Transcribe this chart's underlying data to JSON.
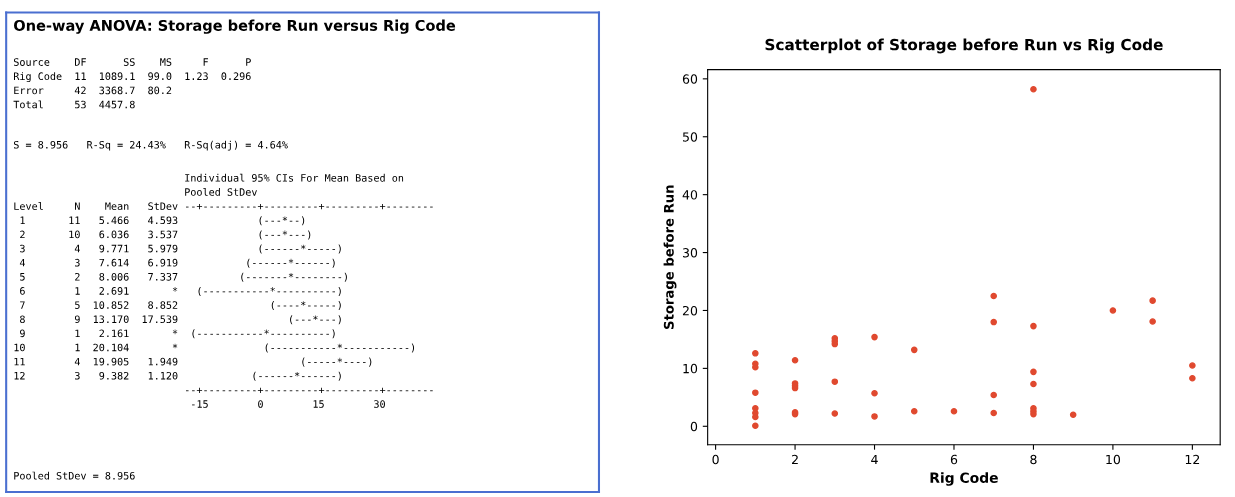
{
  "chart_data": [
    {
      "type": "other",
      "title": "One-way ANOVA: Storage before Run versus Rig Code",
      "color": "#4a6fd0",
      "annotations": [
        "Source    DF      SS    MS     F      P\nRig Code  11  1089.1  99.0  1.23  0.296\nError     42  3368.7  80.2\nTotal     53  4457.8",
        "S = 8.956   R-Sq = 24.43%   R-Sq(adj) = 4.64%",
        "                            Individual 95% CIs For Mean Based on\n                            Pooled StDev\nLevel     N    Mean   StDev --+---------+---------+---------+--------\n 1       11   5.466   4.593             (---*--)\n 2       10   6.036   3.537             (---*---)\n 3        4   9.771   5.979             (------*-----)\n 4        3   7.614   6.919           (------*------)\n 5        2   8.006   7.337          (-------*--------)\n 6        1   2.691       *   (-----------*----------)\n 7        5  10.852   8.852               (----*-----)\n 8        9  13.170  17.539                  (---*---)\n 9        1   2.161       *  (-----------*----------)\n10        1  20.104       *              (-----------*-----------)\n11        4  19.905   1.949                    (-----*----)\n12        3   9.382   1.120            (------*------)\n                            --+---------+---------+---------+--------\n                             -15        0        15        30",
        "Pooled StDev = 8.956"
      ]
    },
    {
      "type": "scatter",
      "title": "Scatterplot of Storage before Run vs Rig Code",
      "xlabel": "Rig Code",
      "ylabel": "Storage before Run",
      "xlim": [
        -0.2,
        12.7
      ],
      "ylim": [
        -3.2,
        61.6
      ],
      "xticks": [
        0,
        2,
        4,
        6,
        8,
        10,
        12
      ],
      "yticks": [
        0,
        10,
        20,
        30,
        40,
        50,
        60
      ],
      "grid": false,
      "marker": "circle",
      "series": [
        {
          "color": "#e0492f",
          "x": [
            1,
            1,
            1,
            1,
            1,
            1,
            1,
            1,
            2,
            2,
            2,
            2,
            2,
            2,
            3,
            3,
            3,
            3,
            3,
            4,
            4,
            4,
            5,
            5,
            6,
            7,
            7,
            7,
            7,
            8,
            8,
            8,
            8,
            8,
            8,
            8,
            9,
            10,
            11,
            11,
            12,
            12
          ],
          "values": [
            12.6,
            10.8,
            10.2,
            5.8,
            3.1,
            2.3,
            1.6,
            0.1,
            11.4,
            7.4,
            7.0,
            6.6,
            2.4,
            2.1,
            15.2,
            14.7,
            14.2,
            7.7,
            2.2,
            15.4,
            5.7,
            1.7,
            13.2,
            2.6,
            2.6,
            22.5,
            18.0,
            5.4,
            2.3,
            58.2,
            17.3,
            9.4,
            7.3,
            3.1,
            2.6,
            2.1,
            2.0,
            20.0,
            21.7,
            18.1,
            10.5,
            8.3
          ]
        }
      ]
    }
  ]
}
